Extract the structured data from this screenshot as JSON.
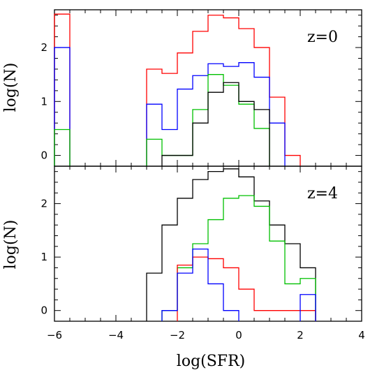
{
  "chart_data": {
    "type": "step",
    "xlabel": "log(SFR)",
    "xlim": [
      -6,
      4
    ],
    "x_ticks": [
      "-6",
      "-4",
      "-2",
      "0",
      "2",
      "4"
    ],
    "bin_edges": [
      -6.0,
      -5.5,
      -5.0,
      -4.5,
      -4.0,
      -3.5,
      -3.0,
      -2.5,
      -2.0,
      -1.5,
      -1.0,
      -0.5,
      0.0,
      0.5,
      1.0,
      1.5,
      2.0,
      2.5
    ],
    "panels": [
      {
        "label": "z=0",
        "ylabel": "log(N)",
        "ylim": [
          -0.2,
          2.7
        ],
        "y_ticks": [
          "0",
          "1",
          "2"
        ],
        "series": [
          {
            "color": "#ff0000",
            "values": [
              2.62,
              null,
              null,
              null,
              null,
              null,
              1.6,
              1.52,
              1.9,
              2.3,
              2.6,
              2.55,
              2.35,
              2.0,
              1.08,
              0.0,
              null
            ]
          },
          {
            "color": "#0000ff",
            "values": [
              2.0,
              null,
              null,
              null,
              null,
              null,
              0.95,
              0.48,
              1.23,
              1.48,
              1.7,
              1.65,
              1.72,
              1.45,
              0.6,
              null,
              null
            ]
          },
          {
            "color": "#00c000",
            "values": [
              0.48,
              null,
              null,
              null,
              null,
              null,
              0.3,
              0.0,
              0.0,
              0.85,
              1.5,
              1.3,
              0.95,
              0.5,
              null,
              null,
              null
            ]
          },
          {
            "color": "#000000",
            "values": [
              null,
              null,
              null,
              null,
              null,
              null,
              null,
              0.0,
              0.0,
              0.6,
              1.17,
              1.35,
              1.0,
              0.85,
              null,
              null,
              null
            ]
          }
        ]
      },
      {
        "label": "z=4",
        "ylabel": "log(N)",
        "ylim": [
          -0.2,
          2.7
        ],
        "y_ticks": [
          "0",
          "1",
          "2"
        ],
        "series": [
          {
            "color": "#000000",
            "values": [
              null,
              null,
              null,
              null,
              null,
              null,
              0.7,
              1.6,
              2.1,
              2.45,
              2.6,
              2.65,
              2.5,
              2.05,
              1.6,
              1.25,
              0.8
            ]
          },
          {
            "color": "#00c000",
            "values": [
              null,
              null,
              null,
              null,
              null,
              null,
              null,
              0.0,
              0.8,
              1.25,
              1.7,
              2.1,
              2.15,
              1.95,
              1.3,
              0.5,
              0.6
            ]
          },
          {
            "color": "#ff0000",
            "values": [
              null,
              null,
              null,
              null,
              null,
              null,
              null,
              null,
              0.85,
              1.0,
              0.97,
              0.8,
              0.4,
              0.0,
              0.0,
              0.0,
              0.0
            ]
          },
          {
            "color": "#0000ff",
            "values": [
              null,
              null,
              null,
              null,
              null,
              null,
              null,
              0.0,
              0.7,
              1.15,
              0.5,
              0.0,
              null,
              null,
              null,
              null,
              0.3
            ]
          }
        ]
      }
    ]
  }
}
